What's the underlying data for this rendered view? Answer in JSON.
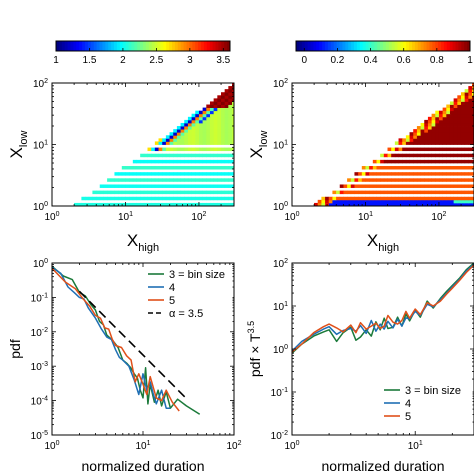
{
  "chart_data": [
    {
      "type": "heatmap",
      "xlabel": "X",
      "xlabel_sub": "high",
      "ylabel": "X",
      "ylabel_sub": "low",
      "xscale": "log",
      "yscale": "log",
      "xlim": [
        1,
        300
      ],
      "ylim": [
        1,
        100
      ],
      "x_ticks": [
        {
          "v": 1,
          "b": "10",
          "e": "0"
        },
        {
          "v": 10,
          "b": "10",
          "e": "1"
        },
        {
          "v": 100,
          "b": "10",
          "e": "2"
        }
      ],
      "y_ticks": [
        {
          "v": 1,
          "b": "10",
          "e": "0"
        },
        {
          "v": 10,
          "b": "10",
          "e": "1"
        },
        {
          "v": 100,
          "b": "10",
          "e": "2"
        }
      ],
      "colorbar": {
        "colormap": "jet",
        "range": [
          1,
          3.6
        ],
        "ticks": [
          "1",
          "1.5",
          "2",
          "2.5",
          "3",
          "3.5"
        ],
        "tick_values": [
          1,
          1.5,
          2,
          2.5,
          3,
          3.5
        ]
      },
      "grid": false
    },
    {
      "type": "heatmap",
      "xlabel": "X",
      "xlabel_sub": "high",
      "ylabel": "X",
      "ylabel_sub": "low",
      "xscale": "log",
      "yscale": "log",
      "xlim": [
        1,
        300
      ],
      "ylim": [
        1,
        100
      ],
      "x_ticks": [
        {
          "v": 1,
          "b": "10",
          "e": "0"
        },
        {
          "v": 10,
          "b": "10",
          "e": "1"
        },
        {
          "v": 100,
          "b": "10",
          "e": "2"
        }
      ],
      "y_ticks": [
        {
          "v": 1,
          "b": "10",
          "e": "0"
        },
        {
          "v": 10,
          "b": "10",
          "e": "1"
        },
        {
          "v": 100,
          "b": "10",
          "e": "2"
        }
      ],
      "colorbar": {
        "colormap": "jet",
        "range": [
          -0.05,
          1
        ],
        "ticks": [
          "0",
          "0.2",
          "0.4",
          "0.6",
          "0.8",
          "1"
        ],
        "tick_values": [
          0,
          0.2,
          0.4,
          0.6,
          0.8,
          1
        ]
      },
      "grid": false
    },
    {
      "type": "line",
      "xlabel": "normalized duration",
      "ylabel": "pdf",
      "xscale": "log",
      "yscale": "log",
      "xlim": [
        1,
        100
      ],
      "ylim": [
        1e-05,
        1
      ],
      "x_ticks": [
        {
          "v": 1,
          "b": "10",
          "e": "0"
        },
        {
          "v": 10,
          "b": "10",
          "e": "1"
        },
        {
          "v": 100,
          "b": "10",
          "e": "2"
        }
      ],
      "y_ticks": [
        {
          "v": 1,
          "b": "10",
          "e": "0"
        },
        {
          "v": 0.1,
          "b": "10",
          "e": "-1"
        },
        {
          "v": 0.01,
          "b": "10",
          "e": "-2"
        },
        {
          "v": 0.001,
          "b": "10",
          "e": "-3"
        },
        {
          "v": 0.0001,
          "b": "10",
          "e": "-4"
        },
        {
          "v": 1e-05,
          "b": "10",
          "e": "-5"
        }
      ],
      "legend_position": "top-right",
      "series": [
        {
          "name": "3 = bin size",
          "color": "#1b7a3a",
          "dash": false,
          "x": [
            1,
            1.33,
            1.67,
            2,
            2.33,
            2.67,
            3,
            3.33,
            3.67,
            4,
            4.67,
            5.33,
            6,
            6.67,
            7.33,
            8,
            8.67,
            9.33,
            10,
            10.67,
            11.33,
            12,
            13.33,
            14.67,
            16,
            18,
            20,
            24,
            30,
            42
          ],
          "y": [
            0.8,
            0.42,
            0.33,
            0.14,
            0.11,
            0.062,
            0.043,
            0.02,
            0.016,
            0.008,
            0.0055,
            0.0035,
            0.0015,
            0.0012,
            0.0009,
            0.0006,
            0.00045,
            0.0002,
            0.00012,
            0.0009,
            8e-05,
            0.0003,
            9e-05,
            0.0002,
            7e-05,
            0.00018,
            6e-05,
            0.00011,
            7e-05,
            4e-05
          ]
        },
        {
          "name": "4",
          "color": "#1f6fb4",
          "dash": false,
          "x": [
            1,
            1.25,
            1.5,
            1.75,
            2,
            2.25,
            2.5,
            3,
            3.5,
            4,
            4.5,
            5,
            5.5,
            6,
            7,
            8,
            9,
            10,
            11,
            12,
            13,
            14,
            16,
            18,
            20
          ],
          "y": [
            0.75,
            0.5,
            0.2,
            0.14,
            0.1,
            0.09,
            0.05,
            0.025,
            0.012,
            0.007,
            0.006,
            0.003,
            0.0018,
            0.0015,
            0.001,
            0.0004,
            0.00015,
            0.0006,
            0.0002,
            0.00035,
            0.00015,
            8e-05,
            0.0002,
            6e-05,
            6e-05
          ]
        },
        {
          "name": "5",
          "color": "#e0501a",
          "dash": false,
          "x": [
            1,
            1.4,
            1.8,
            2.2,
            2.6,
            3,
            3.4,
            3.8,
            4.2,
            4.6,
            5,
            5.8,
            6.6,
            7.4,
            8.2,
            9,
            10,
            11,
            12,
            14,
            16,
            18,
            21,
            25
          ],
          "y": [
            0.7,
            0.28,
            0.18,
            0.09,
            0.055,
            0.03,
            0.025,
            0.013,
            0.012,
            0.006,
            0.004,
            0.0035,
            0.002,
            0.0015,
            0.00035,
            0.0006,
            0.0003,
            0.00015,
            0.0005,
            0.00012,
            0.0001,
            0.0002,
            9e-05,
            5e-05
          ]
        },
        {
          "name": "α = 3.5",
          "color": "#000000",
          "dash": true,
          "x": [
            2,
            30
          ],
          "y": [
            0.15,
            0.000115
          ]
        }
      ]
    },
    {
      "type": "line",
      "xlabel": "normalized duration",
      "ylabel": "pdf × T",
      "ylabel_sup": "3.5",
      "xscale": "log",
      "yscale": "log",
      "xlim": [
        1,
        30
      ],
      "ylim": [
        0.01,
        100
      ],
      "x_ticks": [
        {
          "v": 1,
          "b": "10",
          "e": "0"
        },
        {
          "v": 10,
          "b": "10",
          "e": "1"
        }
      ],
      "y_ticks": [
        {
          "v": 100,
          "b": "10",
          "e": "2"
        },
        {
          "v": 10,
          "b": "10",
          "e": "1"
        },
        {
          "v": 1,
          "b": "10",
          "e": "0"
        },
        {
          "v": 0.1,
          "b": "10",
          "e": "-1"
        },
        {
          "v": 0.01,
          "b": "10",
          "e": "-2"
        }
      ],
      "legend_position": "bottom-right",
      "series": [
        {
          "name": "3 = bin size",
          "color": "#1b7a3a",
          "dash": false,
          "x": [
            1,
            1.2,
            1.5,
            1.8,
            2,
            2.3,
            2.6,
            3,
            3.3,
            3.6,
            4,
            4.4,
            4.8,
            5.2,
            5.6,
            6,
            6.6,
            7.2,
            7.8,
            8.4,
            9,
            10,
            11,
            12.5,
            14,
            16,
            18,
            20,
            23,
            26,
            30
          ],
          "y": [
            0.8,
            1.3,
            2.0,
            2.5,
            2.8,
            1.5,
            2.4,
            3.2,
            1.6,
            1.9,
            2.8,
            2.0,
            4.3,
            2.8,
            5.2,
            3.0,
            3.2,
            5.5,
            3.4,
            6.5,
            4.5,
            8.0,
            5.5,
            13,
            9,
            15,
            22,
            30,
            45,
            70,
            100
          ]
        },
        {
          "name": "4",
          "color": "#1f6fb4",
          "dash": false,
          "x": [
            1,
            1.2,
            1.5,
            1.8,
            2,
            2.3,
            2.6,
            3,
            3.3,
            3.6,
            4,
            4.4,
            4.8,
            5.2,
            5.6,
            6,
            6.6,
            7.2,
            7.8,
            8.4,
            9,
            10,
            11,
            12.5,
            14,
            16,
            18,
            20,
            23,
            26,
            30
          ],
          "y": [
            0.9,
            1.5,
            2.2,
            2.9,
            3.3,
            2.2,
            2.7,
            3.0,
            2.6,
            3.5,
            2.3,
            4.6,
            2.6,
            3.8,
            2.9,
            4.4,
            3.1,
            4.9,
            3.4,
            5.3,
            5.0,
            7.5,
            6.0,
            11,
            9.5,
            14,
            20,
            28,
            42,
            65,
            95
          ]
        },
        {
          "name": "5",
          "color": "#e0501a",
          "dash": false,
          "x": [
            1,
            1.2,
            1.5,
            1.8,
            2,
            2.3,
            2.6,
            3,
            3.3,
            3.6,
            4,
            4.4,
            4.8,
            5.2,
            5.6,
            6,
            6.6,
            7.2,
            7.8,
            8.4,
            9,
            10,
            11,
            12.5,
            14,
            16,
            18,
            20,
            23,
            26,
            30
          ],
          "y": [
            0.85,
            1.3,
            2.4,
            3.3,
            3.8,
            3.1,
            2.5,
            3.6,
            2.4,
            4.1,
            2.9,
            3.4,
            4.0,
            3.0,
            3.4,
            6.0,
            4.2,
            3.8,
            4.6,
            7.5,
            5.2,
            8.5,
            6.3,
            12,
            10,
            13,
            19,
            26,
            40,
            60,
            90
          ]
        }
      ]
    }
  ]
}
